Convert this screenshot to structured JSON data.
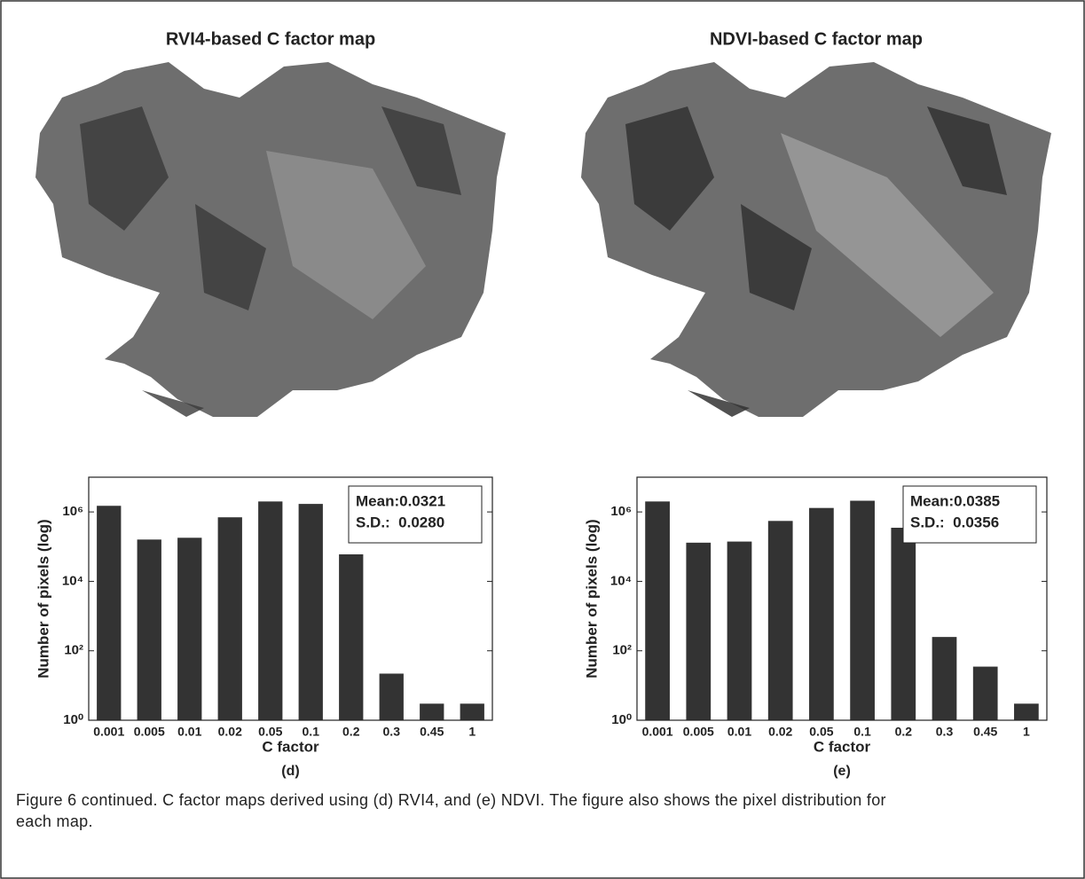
{
  "maps": [
    {
      "title": "RVI4-based  C factor map"
    },
    {
      "title": "NDVI-based  C factor map"
    }
  ],
  "chart_data": [
    {
      "type": "bar",
      "label": "(d)",
      "xlabel": "C factor",
      "ylabel": "Number of pixels (log)",
      "categories": [
        "0.001",
        "0.005",
        "0.01",
        "0.02",
        "0.05",
        "0.1",
        "0.2",
        "0.3",
        "0.45",
        "1"
      ],
      "values": [
        1500000,
        160000,
        180000,
        700000,
        2000000,
        1700000,
        60000,
        22,
        3,
        3
      ],
      "color": "#333333",
      "log_scale": true,
      "ylim": [
        1,
        10000000
      ],
      "yticks": [
        {
          "value": 1,
          "label": "10⁰"
        },
        {
          "value": 100,
          "label": "10²"
        },
        {
          "value": 10000,
          "label": "10⁴"
        },
        {
          "value": 1000000,
          "label": "10⁶"
        }
      ],
      "annotations": [
        "Mean:0.0321",
        "S.D.:  0.0280"
      ]
    },
    {
      "type": "bar",
      "label": "(e)",
      "xlabel": "C factor",
      "ylabel": "Number of pixels (log)",
      "categories": [
        "0.001",
        "0.005",
        "0.01",
        "0.02",
        "0.05",
        "0.1",
        "0.2",
        "0.3",
        "0.45",
        "1"
      ],
      "values": [
        2000000,
        130000,
        140000,
        550000,
        1300000,
        2100000,
        350000,
        250,
        35,
        3
      ],
      "color": "#333333",
      "log_scale": true,
      "ylim": [
        1,
        10000000
      ],
      "yticks": [
        {
          "value": 1,
          "label": "10⁰"
        },
        {
          "value": 100,
          "label": "10²"
        },
        {
          "value": 10000,
          "label": "10⁴"
        },
        {
          "value": 1000000,
          "label": "10⁶"
        }
      ],
      "annotations": [
        "Mean:0.0385",
        "S.D.:  0.0356"
      ]
    }
  ],
  "caption": "Figure 6 continued. C factor maps derived using (d) RVI4, and (e) NDVI. The figure also shows the pixel distribution for each map."
}
